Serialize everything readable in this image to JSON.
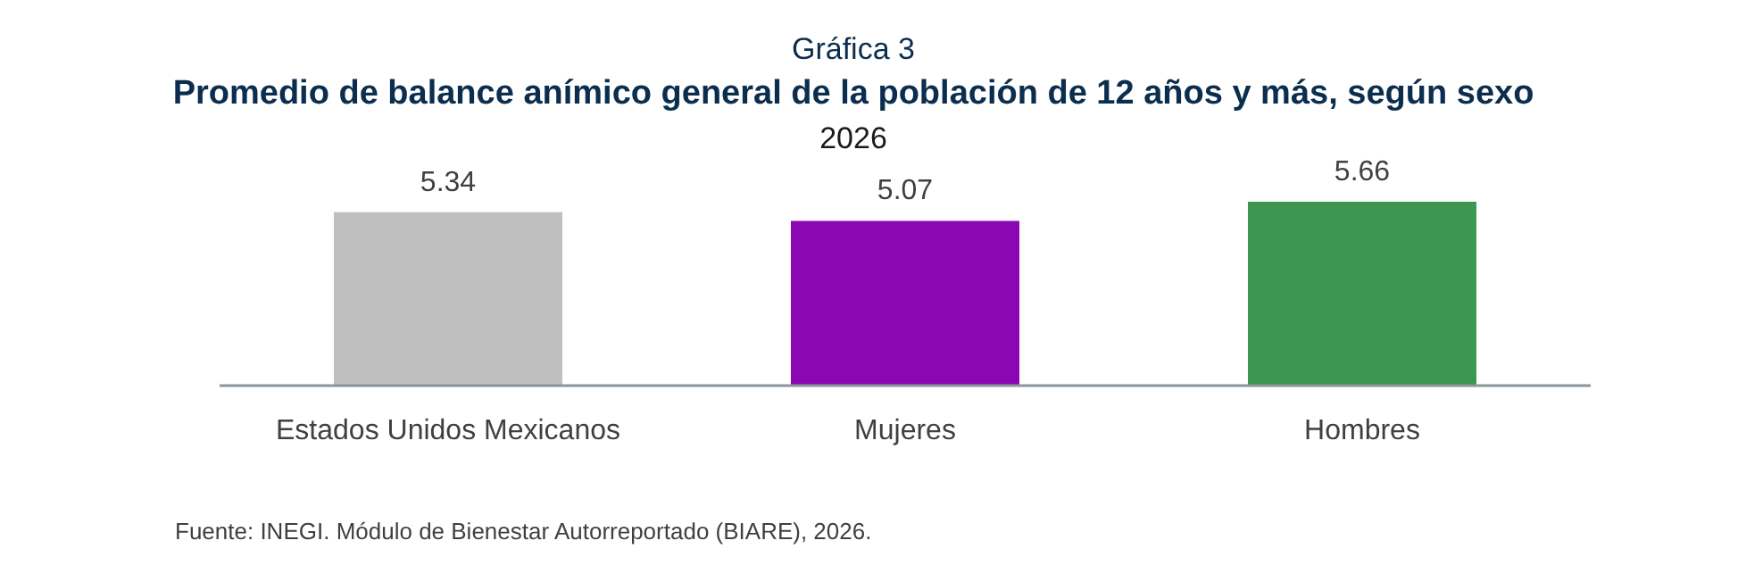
{
  "chart_data": {
    "type": "bar",
    "title": "Promedio de balance anímico general de la población de 12 años y más, según sexo",
    "subtitle": "2026",
    "annotations": [
      "Gráfica 3",
      "Fuente: INEGI. Módulo de Bienestar Autorreportado (BIARE), 2026."
    ],
    "categories": [
      "Estados Unidos Mexicanos",
      "Mujeres",
      "Hombres"
    ],
    "values": [
      5.34,
      5.07,
      5.66
    ],
    "colors": [
      "#bfbfbf",
      "#8a07b1",
      "#3d9651"
    ],
    "data_labels": true
  }
}
